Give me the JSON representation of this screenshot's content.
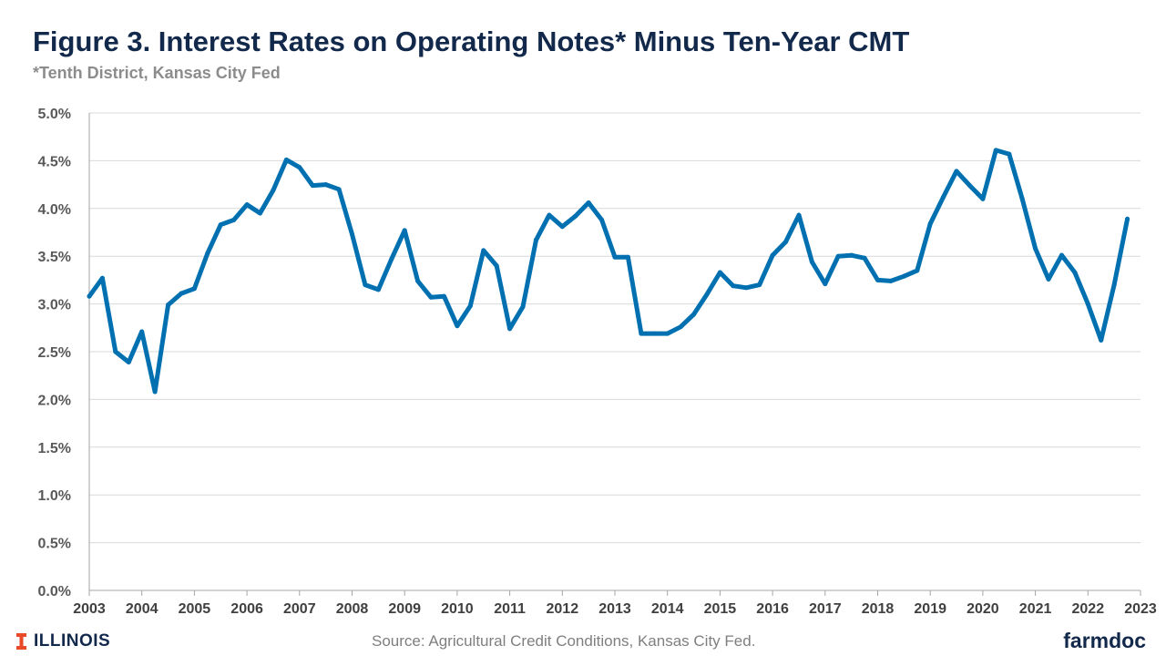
{
  "header": {
    "title": "Figure 3. Interest Rates on Operating Notes* Minus Ten-Year CMT",
    "subtitle": "*Tenth District, Kansas City Fed"
  },
  "footer": {
    "logo_text": "ILLINOIS",
    "source": "Source: Agricultural Credit Conditions, Kansas City Fed.",
    "brand": "farmdoc"
  },
  "colors": {
    "line": "#0070B0",
    "title": "#13294B",
    "grid": "#D9D9D9",
    "logo_orange": "#E84A27"
  },
  "chart_data": {
    "type": "line",
    "title": "Figure 3. Interest Rates on Operating Notes* Minus Ten-Year CMT",
    "xlabel": "",
    "ylabel": "",
    "ylim": [
      0,
      5
    ],
    "xlim": [
      2003,
      2023
    ],
    "grid": true,
    "y_ticks": [
      "0.0%",
      "0.5%",
      "1.0%",
      "1.5%",
      "2.0%",
      "2.5%",
      "3.0%",
      "3.5%",
      "4.0%",
      "4.5%",
      "5.0%"
    ],
    "x_ticks": [
      "2003",
      "2004",
      "2005",
      "2006",
      "2007",
      "2008",
      "2009",
      "2010",
      "2011",
      "2012",
      "2013",
      "2014",
      "2015",
      "2016",
      "2017",
      "2018",
      "2019",
      "2020",
      "2021",
      "2022",
      "2023"
    ],
    "series": [
      {
        "x": [
          2003.0,
          2003.25,
          2003.5,
          2003.75,
          2004.0,
          2004.25,
          2004.5,
          2004.75,
          2005.0,
          2005.25,
          2005.5,
          2005.75,
          2006.0,
          2006.25,
          2006.5,
          2006.75,
          2007.0,
          2007.25,
          2007.5,
          2007.75,
          2008.0,
          2008.25,
          2008.5,
          2008.75,
          2009.0,
          2009.25,
          2009.5,
          2009.75,
          2010.0,
          2010.25,
          2010.5,
          2010.75,
          2011.0,
          2011.25,
          2011.5,
          2011.75,
          2012.0,
          2012.25,
          2012.5,
          2012.75,
          2013.0,
          2013.25,
          2013.5,
          2013.75,
          2014.0,
          2014.25,
          2014.5,
          2014.75,
          2015.0,
          2015.25,
          2015.5,
          2015.75,
          2016.0,
          2016.25,
          2016.5,
          2016.75,
          2017.0,
          2017.25,
          2017.5,
          2017.75,
          2018.0,
          2018.25,
          2018.5,
          2018.75,
          2019.0,
          2019.25,
          2019.5,
          2019.75,
          2020.0,
          2020.25,
          2020.5,
          2020.75,
          2021.0,
          2021.25,
          2021.5,
          2021.75,
          2022.0,
          2022.25,
          2022.5,
          2022.75
        ],
        "values": [
          3.08,
          3.27,
          2.5,
          2.39,
          2.71,
          2.08,
          2.99,
          3.11,
          3.16,
          3.53,
          3.83,
          3.88,
          4.04,
          3.95,
          4.19,
          4.51,
          4.43,
          4.24,
          4.25,
          4.2,
          3.73,
          3.2,
          3.15,
          3.47,
          3.77,
          3.24,
          3.07,
          3.08,
          2.77,
          2.98,
          3.56,
          3.4,
          2.74,
          2.97,
          3.67,
          3.93,
          3.81,
          3.92,
          4.06,
          3.88,
          3.49,
          3.49,
          2.69,
          2.69,
          2.69,
          2.76,
          2.89,
          3.1,
          3.33,
          3.19,
          3.17,
          3.2,
          3.51,
          3.65,
          3.93,
          3.44,
          3.21,
          3.5,
          3.51,
          3.48,
          3.25,
          3.24,
          3.29,
          3.35,
          3.84,
          4.12,
          4.39,
          4.24,
          4.1,
          4.61,
          4.57,
          4.1,
          3.58,
          3.26,
          3.51,
          3.33,
          3.0,
          2.62,
          3.2,
          3.89
        ]
      }
    ]
  }
}
